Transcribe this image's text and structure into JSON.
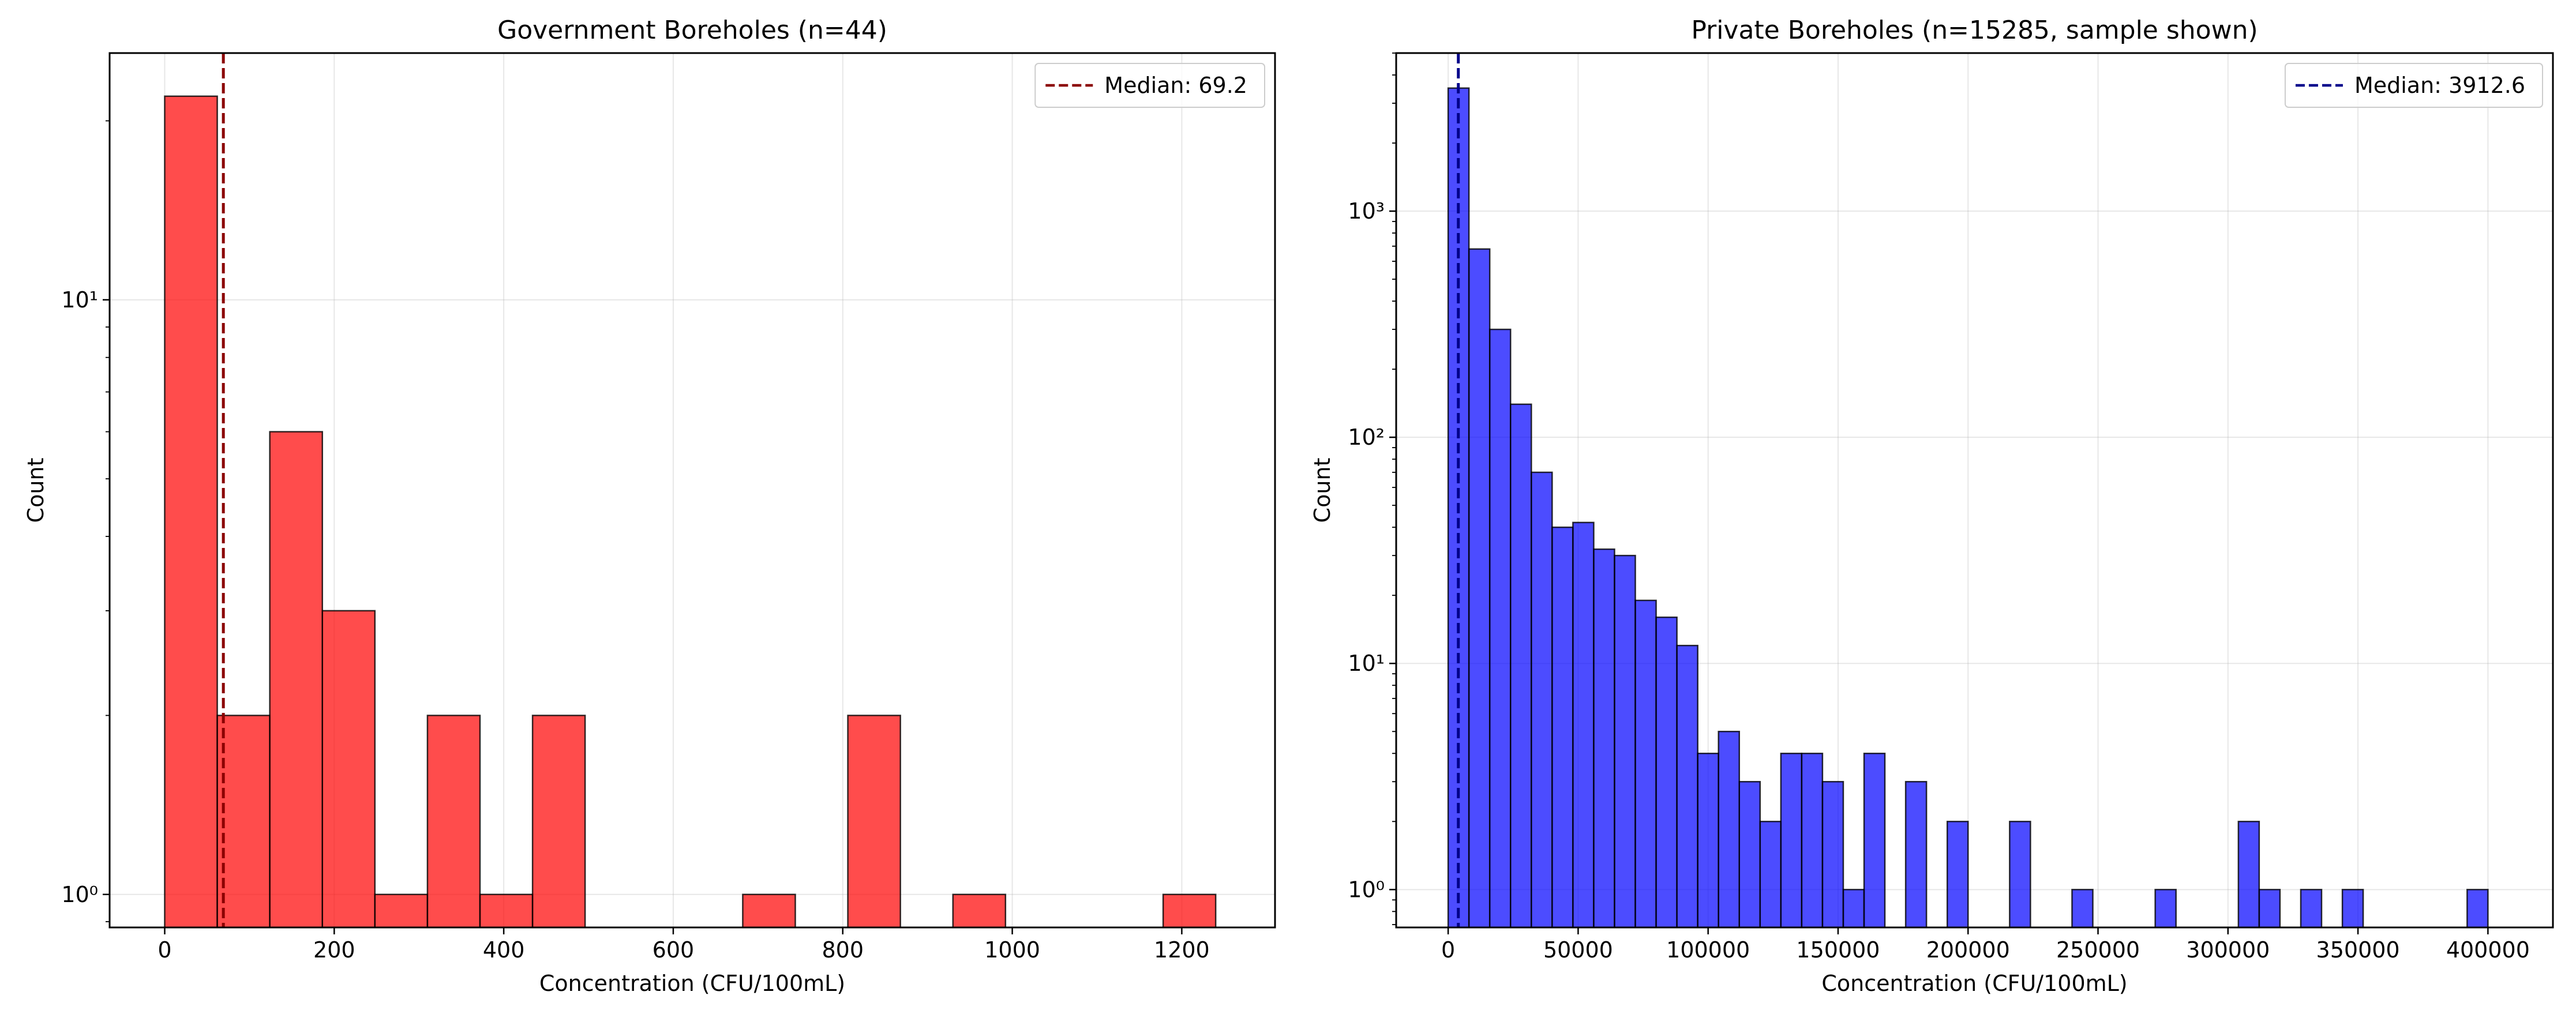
{
  "chart_data": [
    {
      "type": "bar",
      "title": "Government Boreholes (n=44)",
      "xlabel": "Concentration (CFU/100mL)",
      "ylabel": "Count",
      "yscale": "log",
      "xlim": [
        -65,
        1310
      ],
      "ylim": [
        0.88,
        26
      ],
      "xticks": [
        0,
        200,
        400,
        600,
        800,
        1000,
        1200
      ],
      "xtick_labels": [
        "0",
        "200",
        "400",
        "600",
        "800",
        "1000",
        "1200"
      ],
      "yticks": [
        1,
        10
      ],
      "ytick_labels": [
        "10⁰",
        "10¹"
      ],
      "grid": true,
      "bar_color": "#ff0000",
      "bar_alpha": 0.7,
      "bins": [
        {
          "x0": 0,
          "x1": 62,
          "count": 22
        },
        {
          "x0": 62,
          "x1": 124,
          "count": 2
        },
        {
          "x0": 124,
          "x1": 186,
          "count": 6
        },
        {
          "x0": 186,
          "x1": 248,
          "count": 3
        },
        {
          "x0": 248,
          "x1": 310,
          "count": 1
        },
        {
          "x0": 310,
          "x1": 372,
          "count": 2
        },
        {
          "x0": 372,
          "x1": 434,
          "count": 1
        },
        {
          "x0": 434,
          "x1": 496,
          "count": 2
        },
        {
          "x0": 682,
          "x1": 744,
          "count": 1
        },
        {
          "x0": 806,
          "x1": 868,
          "count": 2
        },
        {
          "x0": 930,
          "x1": 992,
          "count": 1
        },
        {
          "x0": 1178,
          "x1": 1240,
          "count": 1
        }
      ],
      "median": {
        "value": 69.2,
        "label": "Median: 69.2",
        "color": "#8b0000"
      },
      "legend_position": "top-right"
    },
    {
      "type": "bar",
      "title": "Private Boreholes (n=15285, sample shown)",
      "xlabel": "Concentration (CFU/100mL)",
      "ylabel": "Count",
      "yscale": "log",
      "xlim": [
        -20000,
        425000
      ],
      "ylim": [
        0.68,
        5000
      ],
      "xticks": [
        0,
        50000,
        100000,
        150000,
        200000,
        250000,
        300000,
        350000,
        400000
      ],
      "xtick_labels": [
        "0",
        "50000",
        "100000",
        "150000",
        "200000",
        "250000",
        "300000",
        "350000",
        "400000"
      ],
      "yticks": [
        1,
        10,
        100,
        1000
      ],
      "ytick_labels": [
        "10⁰",
        "10¹",
        "10²",
        "10³"
      ],
      "grid": true,
      "bar_color": "#0000ff",
      "bar_alpha": 0.7,
      "bin_width": 8000,
      "counts": [
        3500,
        680,
        300,
        140,
        70,
        40,
        42,
        32,
        30,
        19,
        16,
        12,
        4,
        5,
        3,
        2,
        4,
        4,
        3,
        1,
        4,
        0,
        3,
        0,
        2,
        0,
        0,
        2,
        0,
        0,
        1,
        0,
        0,
        0,
        1,
        0,
        0,
        0,
        2,
        1,
        0,
        1,
        0,
        1,
        0,
        0,
        0,
        0,
        0,
        1
      ],
      "median": {
        "value": 3912.6,
        "label": "Median: 3912.6",
        "color": "#00008b"
      },
      "legend_position": "top-right"
    }
  ]
}
